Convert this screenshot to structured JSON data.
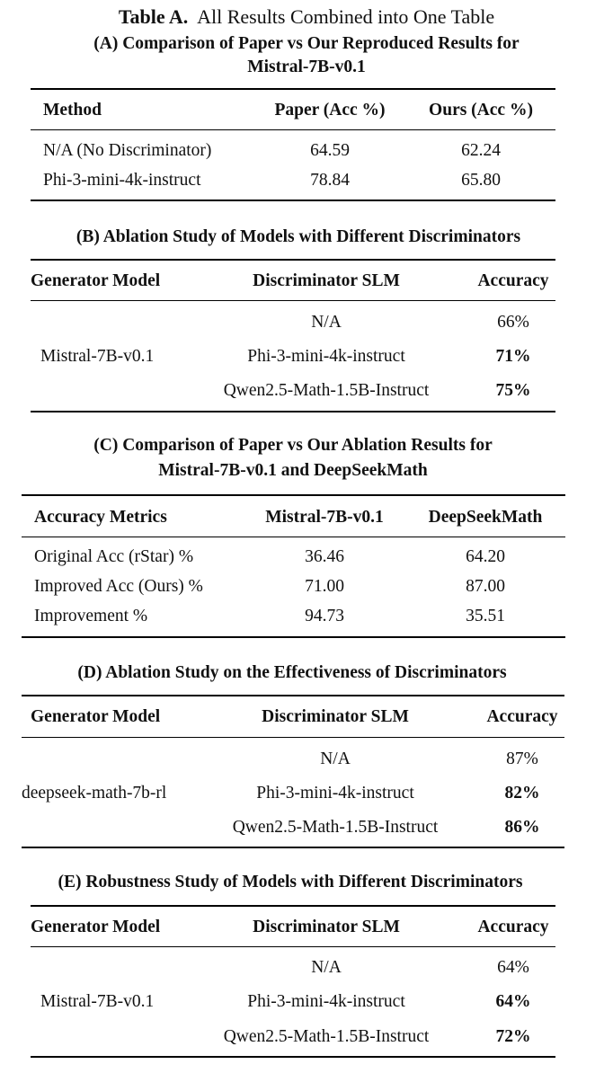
{
  "title": {
    "label": "Table A.",
    "text": "All Results Combined into One Table"
  },
  "sectionA": {
    "title_line1": "(A) Comparison of Paper vs Our Reproduced Results for",
    "title_line2": "Mistral-7B-v0.1",
    "headers": [
      "Method",
      "Paper (Acc %)",
      "Ours (Acc %)"
    ],
    "rows": [
      [
        "N/A (No Discriminator)",
        "64.59",
        "62.24"
      ],
      [
        "Phi-3-mini-4k-instruct",
        "78.84",
        "65.80"
      ]
    ]
  },
  "sectionB": {
    "title": "(B) Ablation Study of Models with Different Discriminators",
    "headers": [
      "Generator Model",
      "Discriminator SLM",
      "Accuracy"
    ],
    "generator": "Mistral-7B-v0.1",
    "rows": [
      [
        "N/A",
        "66%"
      ],
      [
        "Phi-3-mini-4k-instruct",
        "71%"
      ],
      [
        "Qwen2.5-Math-1.5B-Instruct",
        "75%"
      ]
    ]
  },
  "sectionC": {
    "title_line1": "(C) Comparison of Paper vs Our Ablation Results for",
    "title_line2": "Mistral-7B-v0.1 and DeepSeekMath",
    "headers": [
      "Accuracy Metrics",
      "Mistral-7B-v0.1",
      "DeepSeekMath"
    ],
    "rows": [
      [
        "Original Acc (rStar) %",
        "36.46",
        "64.20"
      ],
      [
        "Improved Acc (Ours) %",
        "71.00",
        "87.00"
      ],
      [
        "Improvement %",
        "94.73",
        "35.51"
      ]
    ]
  },
  "sectionD": {
    "title": "(D) Ablation Study on the Effectiveness of Discriminators",
    "headers": [
      "Generator Model",
      "Discriminator SLM",
      "Accuracy"
    ],
    "generator": "deepseek-math-7b-rl",
    "rows": [
      [
        "N/A",
        "87%"
      ],
      [
        "Phi-3-mini-4k-instruct",
        "82%"
      ],
      [
        "Qwen2.5-Math-1.5B-Instruct",
        "86%"
      ]
    ]
  },
  "sectionE": {
    "title": "(E) Robustness Study of Models with Different Discriminators",
    "headers": [
      "Generator Model",
      "Discriminator SLM",
      "Accuracy"
    ],
    "generator": "Mistral-7B-v0.1",
    "rows": [
      [
        "N/A",
        "64%"
      ],
      [
        "Phi-3-mini-4k-instruct",
        "64%"
      ],
      [
        "Qwen2.5-Math-1.5B-Instruct",
        "72%"
      ]
    ]
  }
}
